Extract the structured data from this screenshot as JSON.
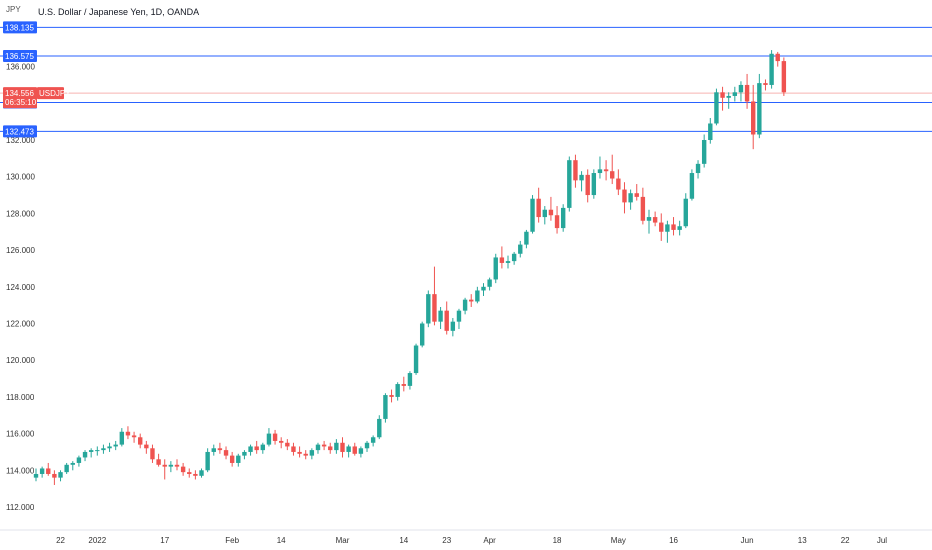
{
  "header": {
    "title": "U.S. Dollar / Japanese Yen, 1D, OANDA",
    "unit": "JPY"
  },
  "colors": {
    "up": "#26a69a",
    "down": "#ef5350",
    "level_line": "#2962ff",
    "level_label_bg": "#2962ff",
    "price_label_bg": "#ef5350",
    "price_line": "#f7b3b1"
  },
  "chart_data": {
    "type": "candlestick",
    "ylim": [
      110.8,
      139.5
    ],
    "y_ticks": [
      "112.000",
      "114.000",
      "116.000",
      "118.000",
      "120.000",
      "122.000",
      "124.000",
      "126.000",
      "128.000",
      "130.000",
      "132.000",
      "134.000",
      "136.000"
    ],
    "x_ticks": [
      {
        "label": "22",
        "index": 4
      },
      {
        "label": "2022",
        "index": 10
      },
      {
        "label": "17",
        "index": 21
      },
      {
        "label": "Feb",
        "index": 32
      },
      {
        "label": "14",
        "index": 40
      },
      {
        "label": "Mar",
        "index": 50
      },
      {
        "label": "14",
        "index": 60
      },
      {
        "label": "23",
        "index": 67
      },
      {
        "label": "Apr",
        "index": 74
      },
      {
        "label": "18",
        "index": 85
      },
      {
        "label": "May",
        "index": 95
      },
      {
        "label": "16",
        "index": 104
      },
      {
        "label": "Jun",
        "index": 116
      },
      {
        "label": "13",
        "index": 125
      },
      {
        "label": "22",
        "index": 132
      },
      {
        "label": "Jul",
        "index": 138
      }
    ],
    "horizontal_levels": [
      138.135,
      136.575,
      134.047,
      132.473
    ],
    "level_labels": [
      "138.135",
      "136.575",
      "134.047",
      "132.473"
    ],
    "current_price": {
      "value": 134.556,
      "label": "134.556",
      "countdown": "06:35:10",
      "symbol": "USDJPY"
    },
    "candles": [
      [
        113.6,
        114.1,
        113.4,
        113.8
      ],
      [
        113.8,
        114.2,
        113.6,
        114.1
      ],
      [
        114.1,
        114.4,
        113.7,
        113.8
      ],
      [
        113.8,
        114.0,
        113.2,
        113.6
      ],
      [
        113.6,
        114.0,
        113.4,
        113.9
      ],
      [
        113.9,
        114.4,
        113.8,
        114.3
      ],
      [
        114.3,
        114.5,
        114.0,
        114.4
      ],
      [
        114.4,
        114.8,
        114.2,
        114.7
      ],
      [
        114.7,
        115.1,
        114.5,
        115.0
      ],
      [
        115.0,
        115.2,
        114.7,
        115.1
      ],
      [
        115.1,
        115.3,
        114.8,
        115.1
      ],
      [
        115.1,
        115.4,
        114.9,
        115.2
      ],
      [
        115.2,
        115.5,
        115.0,
        115.3
      ],
      [
        115.3,
        115.6,
        115.1,
        115.4
      ],
      [
        115.4,
        116.3,
        115.3,
        116.1
      ],
      [
        116.1,
        116.4,
        115.7,
        115.9
      ],
      [
        115.9,
        116.1,
        115.5,
        115.8
      ],
      [
        115.8,
        116.0,
        115.2,
        115.4
      ],
      [
        115.4,
        115.6,
        114.9,
        115.2
      ],
      [
        115.2,
        115.4,
        114.4,
        114.6
      ],
      [
        114.6,
        114.9,
        114.2,
        114.3
      ],
      [
        114.3,
        114.6,
        113.5,
        114.2
      ],
      [
        114.2,
        114.5,
        113.9,
        114.3
      ],
      [
        114.3,
        114.6,
        114.0,
        114.2
      ],
      [
        114.2,
        114.4,
        113.7,
        113.9
      ],
      [
        113.9,
        114.1,
        113.6,
        113.8
      ],
      [
        113.8,
        114.0,
        113.5,
        113.7
      ],
      [
        113.7,
        114.1,
        113.6,
        114.0
      ],
      [
        114.0,
        115.2,
        113.9,
        115.0
      ],
      [
        115.0,
        115.4,
        114.8,
        115.2
      ],
      [
        115.2,
        115.5,
        114.9,
        115.1
      ],
      [
        115.1,
        115.3,
        114.6,
        114.8
      ],
      [
        114.8,
        115.0,
        114.2,
        114.4
      ],
      [
        114.4,
        114.9,
        114.2,
        114.8
      ],
      [
        114.8,
        115.1,
        114.6,
        115.0
      ],
      [
        115.0,
        115.4,
        114.8,
        115.3
      ],
      [
        115.3,
        115.6,
        114.9,
        115.1
      ],
      [
        115.1,
        115.5,
        114.9,
        115.4
      ],
      [
        115.4,
        116.3,
        115.3,
        116.0
      ],
      [
        116.0,
        116.2,
        115.4,
        115.6
      ],
      [
        115.6,
        115.8,
        115.2,
        115.5
      ],
      [
        115.5,
        115.7,
        115.1,
        115.3
      ],
      [
        115.3,
        115.5,
        114.8,
        115.0
      ],
      [
        115.0,
        115.3,
        114.7,
        114.9
      ],
      [
        114.9,
        115.1,
        114.6,
        114.8
      ],
      [
        114.8,
        115.2,
        114.6,
        115.1
      ],
      [
        115.1,
        115.5,
        114.9,
        115.4
      ],
      [
        115.4,
        115.6,
        115.1,
        115.3
      ],
      [
        115.3,
        115.5,
        114.9,
        115.1
      ],
      [
        115.1,
        115.7,
        114.9,
        115.5
      ],
      [
        115.5,
        115.8,
        114.7,
        115.0
      ],
      [
        115.0,
        115.4,
        114.7,
        115.3
      ],
      [
        115.3,
        115.5,
        114.8,
        114.9
      ],
      [
        114.9,
        115.3,
        114.7,
        115.2
      ],
      [
        115.2,
        115.6,
        115.0,
        115.5
      ],
      [
        115.5,
        115.9,
        115.3,
        115.8
      ],
      [
        115.8,
        117.0,
        115.7,
        116.8
      ],
      [
        116.8,
        118.2,
        116.6,
        118.1
      ],
      [
        118.1,
        118.4,
        117.7,
        118.0
      ],
      [
        118.0,
        118.8,
        117.8,
        118.7
      ],
      [
        118.7,
        119.1,
        118.3,
        118.6
      ],
      [
        118.6,
        119.4,
        118.4,
        119.3
      ],
      [
        119.3,
        120.9,
        119.2,
        120.8
      ],
      [
        120.8,
        122.1,
        120.7,
        122.0
      ],
      [
        122.0,
        123.8,
        121.8,
        123.6
      ],
      [
        123.6,
        125.1,
        121.9,
        122.1
      ],
      [
        122.1,
        122.9,
        121.7,
        122.7
      ],
      [
        122.7,
        123.2,
        121.4,
        121.6
      ],
      [
        121.6,
        122.3,
        121.3,
        122.1
      ],
      [
        122.1,
        122.8,
        121.7,
        122.7
      ],
      [
        122.7,
        123.4,
        122.5,
        123.3
      ],
      [
        123.3,
        123.6,
        122.9,
        123.2
      ],
      [
        123.2,
        124.0,
        123.1,
        123.8
      ],
      [
        123.8,
        124.2,
        123.5,
        124.0
      ],
      [
        124.0,
        124.5,
        123.8,
        124.4
      ],
      [
        124.4,
        125.8,
        124.2,
        125.6
      ],
      [
        125.6,
        126.2,
        125.0,
        125.3
      ],
      [
        125.3,
        125.7,
        125.0,
        125.4
      ],
      [
        125.4,
        125.9,
        125.2,
        125.8
      ],
      [
        125.8,
        126.5,
        125.6,
        126.3
      ],
      [
        126.3,
        127.1,
        126.1,
        127.0
      ],
      [
        127.0,
        129.0,
        126.9,
        128.8
      ],
      [
        128.8,
        129.4,
        127.5,
        127.8
      ],
      [
        127.8,
        128.4,
        127.4,
        128.2
      ],
      [
        128.2,
        128.9,
        127.6,
        127.9
      ],
      [
        127.9,
        128.4,
        126.9,
        127.2
      ],
      [
        127.2,
        128.5,
        127.0,
        128.3
      ],
      [
        128.3,
        131.1,
        128.1,
        130.9
      ],
      [
        130.9,
        131.2,
        129.4,
        129.8
      ],
      [
        129.8,
        130.3,
        129.2,
        130.1
      ],
      [
        130.1,
        130.4,
        128.6,
        129.0
      ],
      [
        129.0,
        130.4,
        128.8,
        130.2
      ],
      [
        130.2,
        131.1,
        129.9,
        130.4
      ],
      [
        130.4,
        130.9,
        129.8,
        130.3
      ],
      [
        130.3,
        131.2,
        129.6,
        129.9
      ],
      [
        129.9,
        130.4,
        129.0,
        129.3
      ],
      [
        129.3,
        129.7,
        128.0,
        128.6
      ],
      [
        128.6,
        129.3,
        128.2,
        129.1
      ],
      [
        129.1,
        129.6,
        128.7,
        128.9
      ],
      [
        128.9,
        129.4,
        127.4,
        127.6
      ],
      [
        127.6,
        128.2,
        126.9,
        127.8
      ],
      [
        127.8,
        128.1,
        127.3,
        127.5
      ],
      [
        127.5,
        128.0,
        126.5,
        127.0
      ],
      [
        127.0,
        127.6,
        126.4,
        127.4
      ],
      [
        127.4,
        127.8,
        126.8,
        127.1
      ],
      [
        127.1,
        127.6,
        126.8,
        127.3
      ],
      [
        127.3,
        129.1,
        127.2,
        128.8
      ],
      [
        128.8,
        130.4,
        128.7,
        130.2
      ],
      [
        130.2,
        130.9,
        129.9,
        130.7
      ],
      [
        130.7,
        132.3,
        130.5,
        132.0
      ],
      [
        132.0,
        133.2,
        131.8,
        132.9
      ],
      [
        132.9,
        134.8,
        132.8,
        134.6
      ],
      [
        134.6,
        134.9,
        133.6,
        134.3
      ],
      [
        134.3,
        134.6,
        133.7,
        134.4
      ],
      [
        134.4,
        134.9,
        134.1,
        134.6
      ],
      [
        134.6,
        135.2,
        134.1,
        135.0
      ],
      [
        135.0,
        135.6,
        133.7,
        134.1
      ],
      [
        134.1,
        135.0,
        131.5,
        132.3
      ],
      [
        132.3,
        135.6,
        132.1,
        135.1
      ],
      [
        135.1,
        135.3,
        134.7,
        135.0
      ],
      [
        135.0,
        136.9,
        134.8,
        136.7
      ],
      [
        136.7,
        136.8,
        136.0,
        136.3
      ],
      [
        136.3,
        136.5,
        134.4,
        134.6
      ]
    ]
  }
}
